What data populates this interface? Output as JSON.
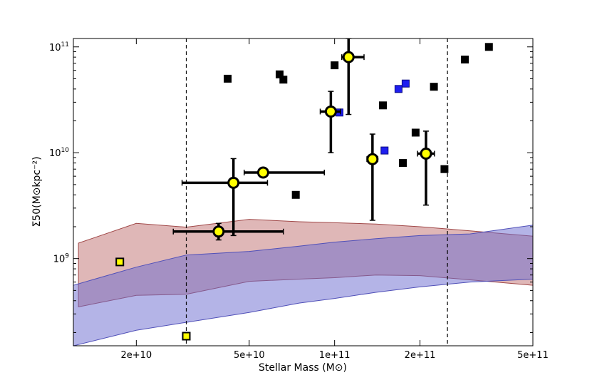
{
  "chart_data": {
    "type": "scatter",
    "xscale": "log",
    "yscale": "log",
    "xlabel": "Stellar Mass (M⊙)",
    "ylabel": "Σ50(M⊙kpc⁻²)",
    "xlim": [
      12000000000,
      500000000000
    ],
    "ylim": [
      150000000,
      120000000000
    ],
    "xticks": [
      {
        "value": 20000000000,
        "label": "2e+10"
      },
      {
        "value": 50000000000,
        "label": "5e+10"
      },
      {
        "value": 100000000000,
        "label": "1e+11"
      },
      {
        "value": 200000000000,
        "label": "2e+11"
      },
      {
        "value": 500000000000,
        "label": "5e+11"
      }
    ],
    "yticks": [
      {
        "value": 1000000000,
        "base": "10",
        "exp": "9"
      },
      {
        "value": 10000000000,
        "base": "10",
        "exp": "10"
      },
      {
        "value": 100000000000,
        "base": "10",
        "exp": "11"
      }
    ],
    "vlines": [
      30000000000,
      250000000000
    ],
    "bands": [
      {
        "fill": "#c07070",
        "stroke": "#a04848",
        "opacity": 0.5,
        "x": [
          12500000000,
          20000000000,
          30000000000,
          50000000000,
          75000000000,
          100000000000,
          140000000000,
          200000000000,
          300000000000,
          500000000000
        ],
        "upper": [
          1400000000,
          2150000000,
          1980000000,
          2350000000,
          2230000000,
          2180000000,
          2120000000,
          2000000000,
          1830000000,
          1630000000
        ],
        "lower": [
          350000000,
          450000000,
          460000000,
          610000000,
          640000000,
          660000000,
          700000000,
          690000000,
          630000000,
          560000000
        ]
      },
      {
        "fill": "#6a6ad0",
        "stroke": "#5050b8",
        "opacity": 0.5,
        "x": [
          12000000000,
          20000000000,
          30000000000,
          50000000000,
          75000000000,
          100000000000,
          140000000000,
          200000000000,
          300000000000,
          500000000000
        ],
        "upper": [
          560000000,
          830000000,
          1080000000,
          1170000000,
          1310000000,
          1430000000,
          1540000000,
          1650000000,
          1710000000,
          2070000000
        ],
        "lower": [
          150000000,
          210000000,
          250000000,
          310000000,
          380000000,
          420000000,
          480000000,
          540000000,
          600000000,
          640000000
        ]
      }
    ],
    "series": [
      {
        "marker": "square",
        "color": "#000000",
        "edge": "#000000",
        "points": [
          [
            42000000000,
            50000000000
          ],
          [
            64000000000,
            55000000000
          ],
          [
            66000000000,
            49000000000
          ],
          [
            73000000000,
            4000000000
          ],
          [
            100000000000,
            67000000000
          ],
          [
            148000000000,
            28000000000
          ],
          [
            193000000000,
            15500000000
          ],
          [
            174000000000,
            8000000000
          ],
          [
            224000000000,
            42000000000
          ],
          [
            244000000000,
            7000000000
          ],
          [
            288000000000,
            76000000000
          ],
          [
            350000000000,
            100000000000
          ]
        ]
      },
      {
        "marker": "square",
        "color": "#1e1eef",
        "edge": "#0a0a80",
        "points": [
          [
            104000000000,
            24000000000
          ],
          [
            150000000000,
            10500000000
          ],
          [
            168000000000,
            40000000000
          ],
          [
            178000000000,
            45000000000
          ]
        ]
      },
      {
        "marker": "square",
        "color": "#ffff00",
        "edge": "#000000",
        "points": [
          [
            17500000000,
            930000000
          ],
          [
            30000000000,
            185000000
          ]
        ]
      },
      {
        "marker": "circle",
        "color": "#ffff00",
        "edge": "#000000",
        "points": [
          {
            "x": 39000000000,
            "y": 1800000000,
            "xerr": [
              27000000000,
              66000000000
            ],
            "yerr": [
              1500000000,
              2150000000
            ]
          },
          {
            "x": 44000000000,
            "y": 5200000000,
            "xerr": [
              29000000000,
              58000000000
            ],
            "yerr": [
              1650000000,
              8800000000
            ]
          },
          {
            "x": 56000000000,
            "y": 6500000000,
            "xerr": [
              48000000000,
              92000000000
            ],
            "yerr": [
              5900000000,
              7100000000
            ]
          },
          {
            "x": 97000000000,
            "y": 24500000000,
            "xerr": [
              89000000000,
              105000000000
            ],
            "yerr": [
              10000000000,
              38000000000
            ]
          },
          {
            "x": 112000000000,
            "y": 80000000000,
            "xerr": [
              106000000000,
              127000000000
            ],
            "yerr": [
              23000000000,
              120000000000
            ]
          },
          {
            "x": 136000000000,
            "y": 8700000000,
            "xerr": [
              130000000000,
              142000000000
            ],
            "yerr": [
              2300000000,
              15000000000
            ]
          },
          {
            "x": 210000000000,
            "y": 9800000000,
            "xerr": [
              196000000000,
              225000000000
            ],
            "yerr": [
              3200000000,
              16000000000
            ]
          }
        ]
      }
    ]
  }
}
